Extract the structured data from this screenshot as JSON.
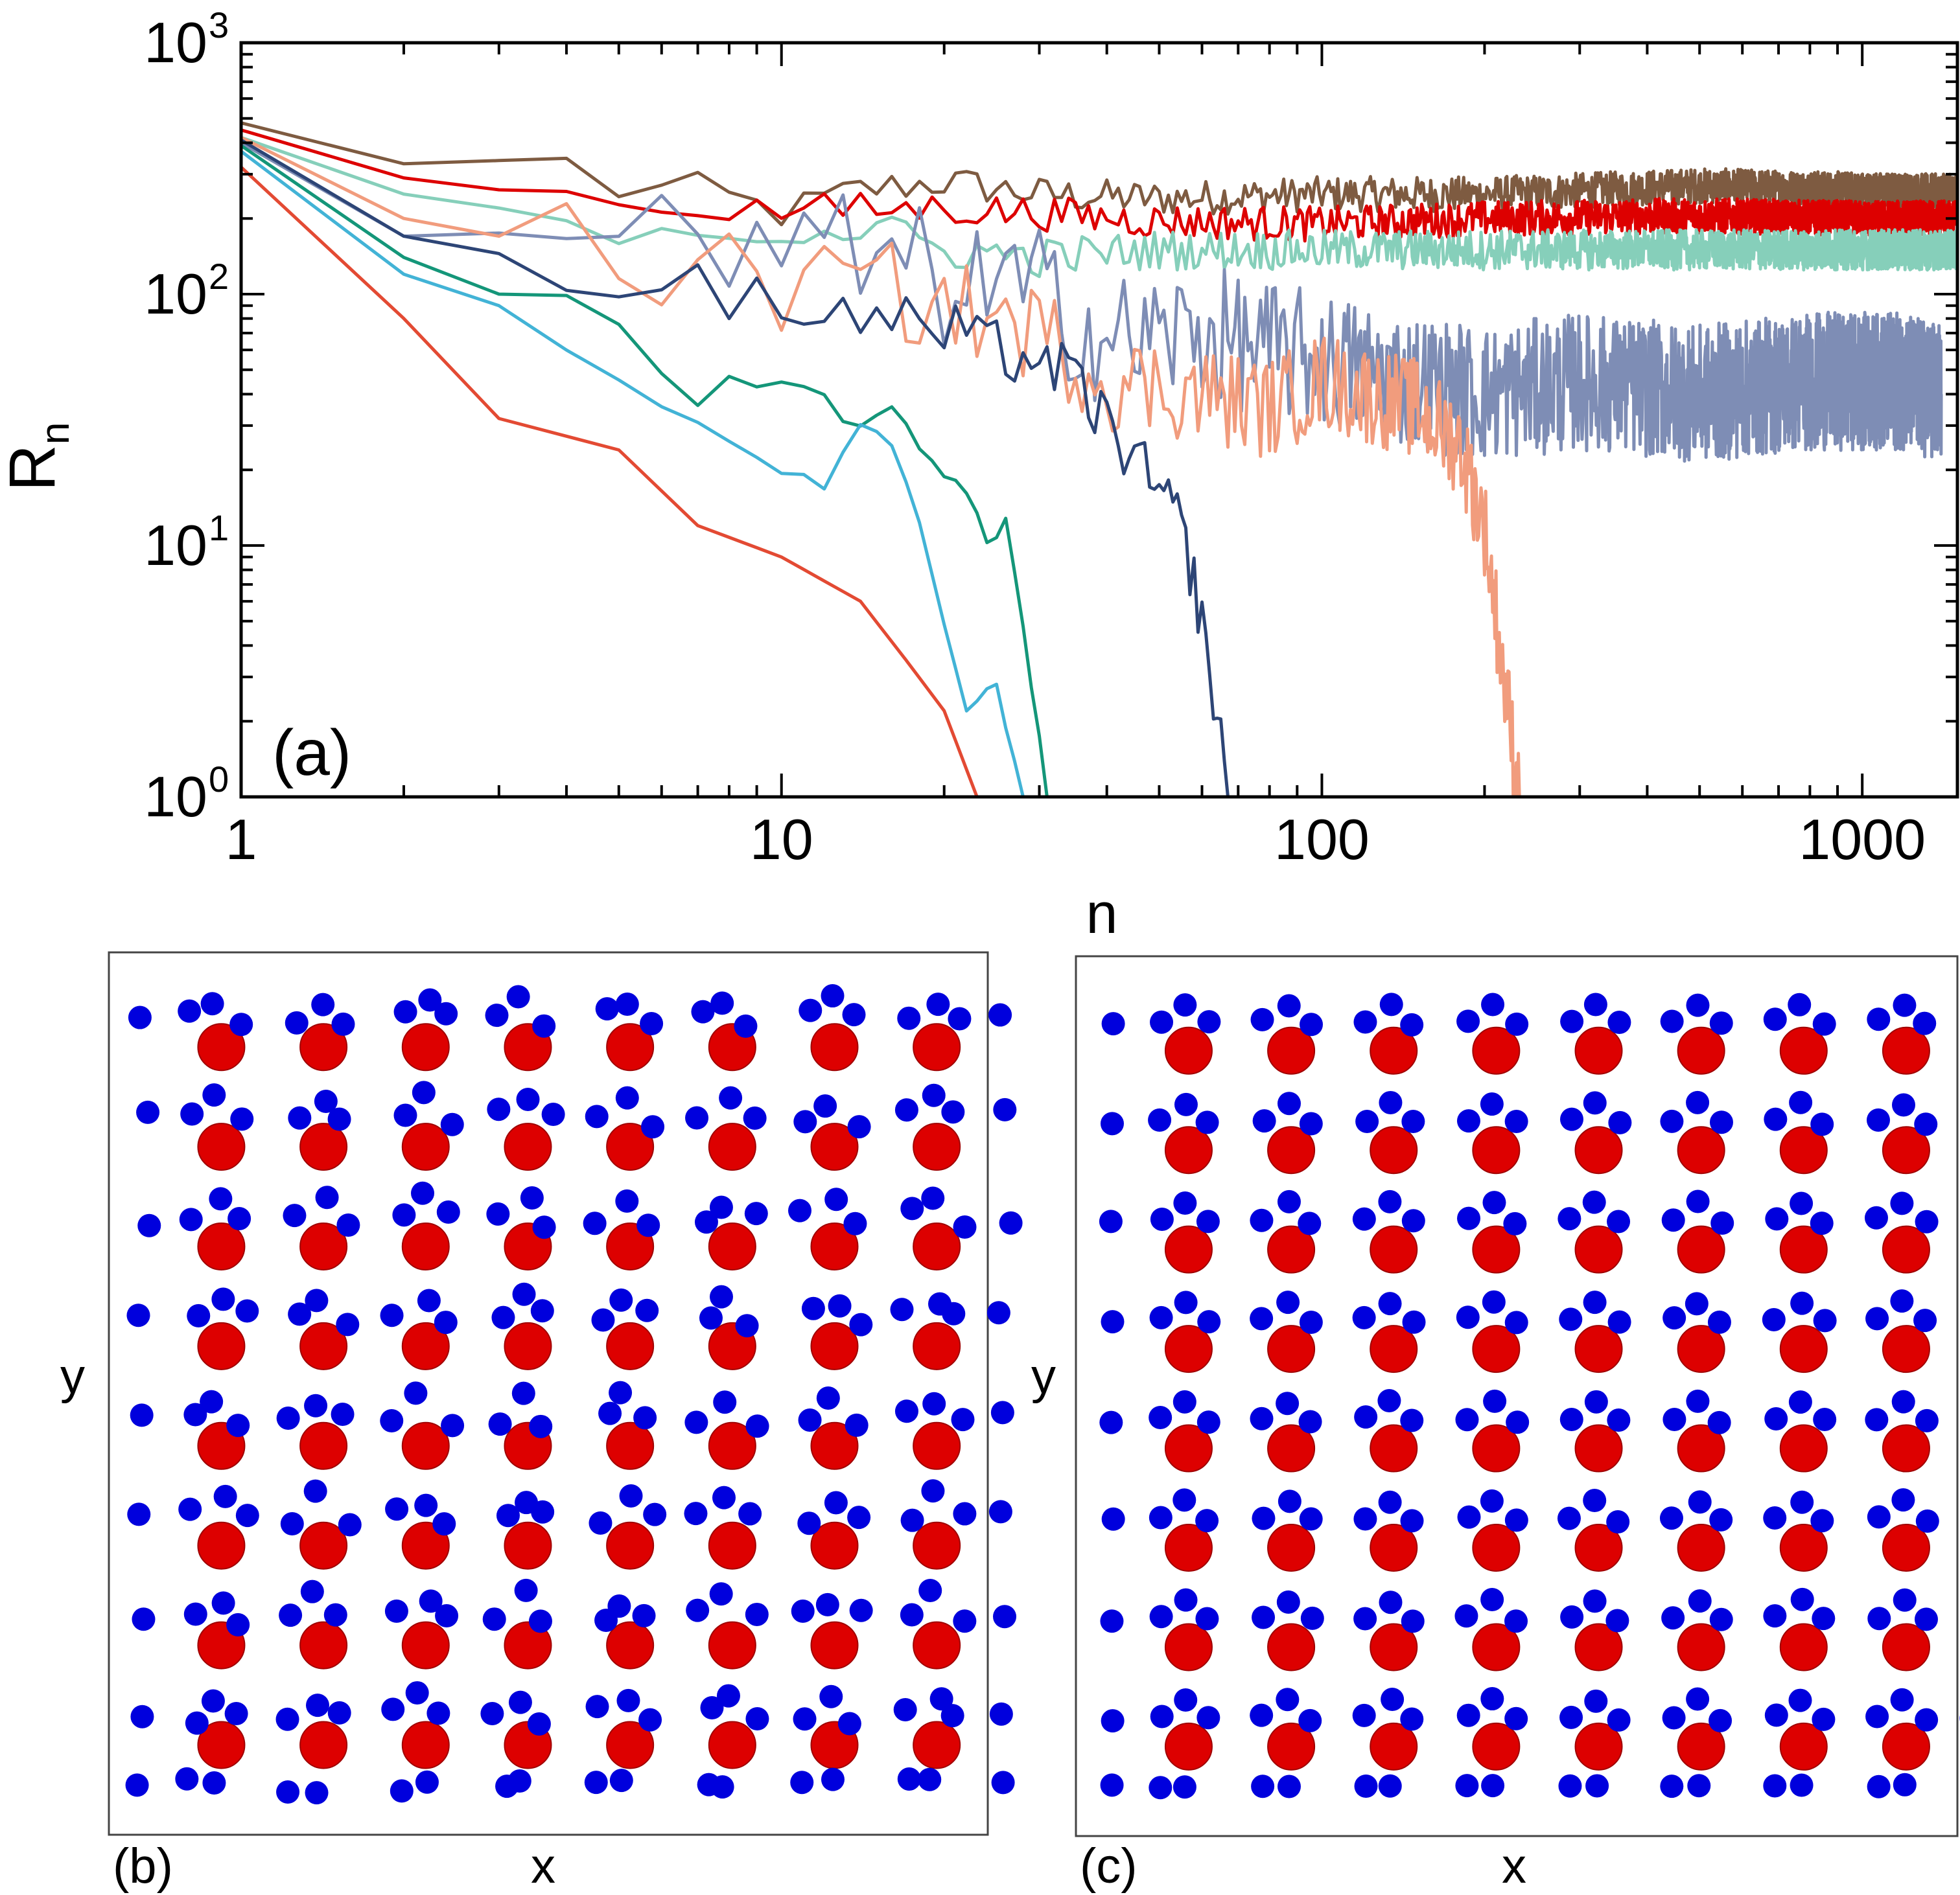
{
  "chart_data": [
    {
      "panel": "(a)",
      "type": "line",
      "xscale": "log",
      "yscale": "log",
      "xlim": [
        1,
        1500
      ],
      "ylim": [
        1,
        1000
      ],
      "xlabel": "n",
      "ylabel": "R",
      "ylabel_subscript": "n",
      "xticks": [
        {
          "value": 1,
          "label": "1"
        },
        {
          "value": 10,
          "label": "10"
        },
        {
          "value": 100,
          "label": "100"
        },
        {
          "value": 1000,
          "label": "1000"
        }
      ],
      "yticks": [
        {
          "value": 1,
          "base": "10",
          "exp": "0"
        },
        {
          "value": 10,
          "base": "10",
          "exp": "1"
        },
        {
          "value": 100,
          "base": "10",
          "exp": "2"
        },
        {
          "value": 1000,
          "base": "10",
          "exp": "3"
        }
      ],
      "series": [
        {
          "name": "brown",
          "color": "#7e5b41",
          "end_n": 1500,
          "points": [
            [
              1,
              480
            ],
            [
              2,
              330
            ],
            [
              3,
              340
            ],
            [
              4,
              330
            ],
            [
              5,
              260
            ],
            [
              7,
              260
            ],
            [
              10,
              210
            ],
            [
              14,
              260
            ],
            [
              20,
              280
            ],
            [
              30,
              250
            ],
            [
              50,
              240
            ],
            [
              100,
              250
            ],
            [
              200,
              250
            ],
            [
              500,
              270
            ],
            [
              1000,
              260
            ],
            [
              1500,
              255
            ]
          ],
          "noise": 0.14
        },
        {
          "name": "red",
          "color": "#dd0000",
          "end_n": 1500,
          "points": [
            [
              1,
              450
            ],
            [
              2,
              290
            ],
            [
              3,
              260
            ],
            [
              5,
              235
            ],
            [
              8,
              220
            ],
            [
              10,
              215
            ],
            [
              20,
              220
            ],
            [
              30,
              210
            ],
            [
              50,
              195
            ],
            [
              100,
              190
            ],
            [
              200,
              200
            ],
            [
              500,
              205
            ],
            [
              1000,
              200
            ],
            [
              1500,
              200
            ]
          ],
          "noise": 0.14
        },
        {
          "name": "teal-light",
          "color": "#86cfba",
          "end_n": 1500,
          "points": [
            [
              1,
              420
            ],
            [
              2,
              250
            ],
            [
              3,
              220
            ],
            [
              4,
              195
            ],
            [
              5,
              190
            ],
            [
              8,
              180
            ],
            [
              15,
              180
            ],
            [
              20,
              150
            ],
            [
              30,
              140
            ],
            [
              50,
              150
            ],
            [
              100,
              150
            ],
            [
              200,
              150
            ],
            [
              500,
              150
            ],
            [
              1000,
              150
            ],
            [
              1500,
              150
            ]
          ],
          "noise": 0.16
        },
        {
          "name": "slate",
          "color": "#7e8db5",
          "end_n": 1400,
          "points": [
            [
              1,
              400
            ],
            [
              2,
              170
            ],
            [
              3,
              175
            ],
            [
              4,
              180
            ],
            [
              5,
              160
            ],
            [
              8,
              140
            ],
            [
              15,
              140
            ],
            [
              20,
              110
            ],
            [
              30,
              100
            ],
            [
              40,
              65
            ],
            [
              60,
              70
            ],
            [
              80,
              60
            ],
            [
              100,
              55
            ],
            [
              150,
              45
            ],
            [
              200,
              40
            ],
            [
              300,
              45
            ],
            [
              500,
              40
            ],
            [
              800,
              45
            ],
            [
              1200,
              45
            ],
            [
              1400,
              40
            ]
          ],
          "noise": 0.55
        },
        {
          "name": "salmon",
          "color": "#f19c7d",
          "end_n": 232,
          "points": [
            [
              1,
              420
            ],
            [
              2,
              200
            ],
            [
              3,
              170
            ],
            [
              4,
              150
            ],
            [
              5,
              140
            ],
            [
              7,
              115
            ],
            [
              10,
              110
            ],
            [
              15,
              105
            ],
            [
              20,
              90
            ],
            [
              30,
              70
            ],
            [
              40,
              45
            ],
            [
              60,
              40
            ],
            [
              80,
              35
            ],
            [
              100,
              45
            ],
            [
              150,
              35
            ],
            [
              180,
              25
            ],
            [
              200,
              12
            ],
            [
              232,
              1
            ]
          ],
          "noise": 0.4
        },
        {
          "name": "navy",
          "color": "#2d4576",
          "end_n": 67,
          "points": [
            [
              1,
              410
            ],
            [
              2,
              170
            ],
            [
              3,
              145
            ],
            [
              4,
              130
            ],
            [
              5,
              120
            ],
            [
              7,
              100
            ],
            [
              10,
              90
            ],
            [
              15,
              80
            ],
            [
              20,
              70
            ],
            [
              25,
              60
            ],
            [
              30,
              55
            ],
            [
              35,
              45
            ],
            [
              40,
              30
            ],
            [
              45,
              22
            ],
            [
              50,
              16
            ],
            [
              55,
              12
            ],
            [
              60,
              5
            ],
            [
              64,
              2
            ],
            [
              67,
              1
            ]
          ],
          "noise": 0.25
        },
        {
          "name": "teal-dark",
          "color": "#149679",
          "end_n": 31,
          "points": [
            [
              1,
              390
            ],
            [
              2,
              140
            ],
            [
              3,
              100
            ],
            [
              4,
              105
            ],
            [
              5,
              75
            ],
            [
              7,
              35
            ],
            [
              8,
              45
            ],
            [
              10,
              45
            ],
            [
              12,
              40
            ],
            [
              14,
              28
            ],
            [
              16,
              35
            ],
            [
              18,
              25
            ],
            [
              20,
              20
            ],
            [
              22,
              17
            ],
            [
              24,
              10
            ],
            [
              26,
              12
            ],
            [
              28,
              5
            ],
            [
              30,
              1.7
            ],
            [
              31,
              1
            ]
          ],
          "noise": 0.06
        },
        {
          "name": "cyan",
          "color": "#42b3d6",
          "end_n": 28,
          "points": [
            [
              1,
              370
            ],
            [
              2,
              120
            ],
            [
              3,
              90
            ],
            [
              4,
              60
            ],
            [
              5,
              45
            ],
            [
              7,
              30
            ],
            [
              10,
              20
            ],
            [
              12,
              17
            ],
            [
              14,
              30
            ],
            [
              16,
              25
            ],
            [
              18,
              12
            ],
            [
              20,
              5
            ],
            [
              22,
              2.2
            ],
            [
              25,
              2.8
            ],
            [
              28,
              1
            ]
          ],
          "noise": 0.04
        },
        {
          "name": "vermilion",
          "color": "#e34a33",
          "end_n": 23,
          "points": [
            [
              1,
              320
            ],
            [
              2,
              80
            ],
            [
              3,
              32
            ],
            [
              5,
              24
            ],
            [
              7,
              12
            ],
            [
              10,
              9
            ],
            [
              14,
              6
            ],
            [
              17,
              3.5
            ],
            [
              20,
              2.2
            ],
            [
              23,
              1
            ]
          ],
          "noise": 0.0
        }
      ],
      "annotations": [
        "(a)"
      ]
    },
    {
      "panel": "(b)",
      "type": "scatter",
      "title": "(b)",
      "xlabel": "x",
      "ylabel": "y",
      "lattice": {
        "columns": 8,
        "rows": 8
      },
      "species": [
        {
          "name": "large",
          "color": "#dd0000",
          "count": 64
        },
        {
          "name": "small",
          "color": "#0000dd"
        }
      ],
      "ordering": "disordered"
    },
    {
      "panel": "(c)",
      "type": "scatter",
      "title": "(c)",
      "xlabel": "x",
      "ylabel": "y",
      "lattice": {
        "columns": 8,
        "rows": 8
      },
      "species": [
        {
          "name": "large",
          "color": "#dd0000",
          "count": 64
        },
        {
          "name": "small",
          "color": "#0000dd"
        }
      ],
      "ordering": "ordered"
    }
  ]
}
